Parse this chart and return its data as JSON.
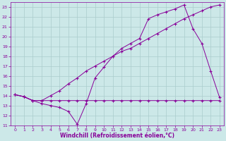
{
  "xlabel": "Windchill (Refroidissement éolien,°C)",
  "xlim": [
    -0.5,
    23.5
  ],
  "ylim": [
    11,
    23.5
  ],
  "xticks": [
    0,
    1,
    2,
    3,
    4,
    5,
    6,
    7,
    8,
    9,
    10,
    11,
    12,
    13,
    14,
    15,
    16,
    17,
    18,
    19,
    20,
    21,
    22,
    23
  ],
  "yticks": [
    11,
    12,
    13,
    14,
    15,
    16,
    17,
    18,
    19,
    20,
    21,
    22,
    23
  ],
  "bg_color": "#cce8e8",
  "grid_color": "#aacccc",
  "line_color": "#880099",
  "line1_x": [
    0,
    1,
    2,
    3,
    4,
    5,
    6,
    7,
    8,
    9,
    10,
    11,
    12,
    13,
    14,
    15,
    16,
    17,
    18,
    19,
    20,
    21,
    22,
    23
  ],
  "line1_y": [
    14.1,
    13.9,
    13.5,
    13.5,
    13.5,
    13.5,
    13.5,
    13.5,
    13.5,
    13.5,
    13.5,
    13.5,
    13.5,
    13.5,
    13.5,
    13.5,
    13.5,
    13.5,
    13.5,
    13.5,
    13.5,
    13.5,
    13.5,
    13.5
  ],
  "line2_x": [
    0,
    1,
    2,
    3,
    4,
    5,
    6,
    7,
    8,
    9,
    10,
    11,
    12,
    13,
    14,
    15,
    16,
    17,
    18,
    19,
    20,
    21,
    22,
    23
  ],
  "line2_y": [
    14.1,
    13.9,
    13.5,
    13.5,
    14.0,
    14.5,
    15.2,
    15.8,
    16.5,
    17.0,
    17.5,
    18.0,
    18.5,
    18.8,
    19.3,
    19.8,
    20.3,
    20.8,
    21.3,
    21.8,
    22.2,
    22.6,
    23.0,
    23.2
  ],
  "line3_x": [
    0,
    1,
    2,
    3,
    4,
    5,
    6,
    7,
    8,
    9,
    10,
    11,
    12,
    13,
    14,
    15,
    16,
    17,
    18,
    19,
    20,
    21,
    22,
    23
  ],
  "line3_y": [
    14.1,
    13.9,
    13.5,
    13.2,
    13.0,
    12.8,
    12.4,
    11.1,
    13.2,
    15.8,
    16.9,
    18.0,
    18.8,
    19.3,
    19.8,
    21.8,
    22.2,
    22.5,
    22.8,
    23.2,
    20.8,
    19.3,
    16.5,
    13.8
  ]
}
